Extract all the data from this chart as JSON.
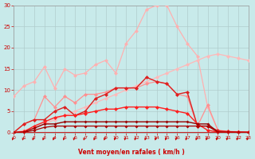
{
  "xlabel": "Vent moyen/en rafales ( km/h )",
  "xlim": [
    0,
    23
  ],
  "ylim": [
    0,
    30
  ],
  "yticks": [
    0,
    5,
    10,
    15,
    20,
    25,
    30
  ],
  "xticks": [
    0,
    1,
    2,
    3,
    4,
    5,
    6,
    7,
    8,
    9,
    10,
    11,
    12,
    13,
    14,
    15,
    16,
    17,
    18,
    19,
    20,
    21,
    22,
    23
  ],
  "bg_color": "#c8eaea",
  "grid_color": "#b0cccc",
  "series": [
    {
      "color": "#ffb0b0",
      "x": [
        0,
        1,
        2,
        3,
        4,
        5,
        6,
        7,
        8,
        9,
        10,
        11,
        12,
        13,
        14,
        15,
        16,
        17,
        18,
        19,
        20,
        21,
        22,
        23
      ],
      "y": [
        8.5,
        11.0,
        12.0,
        15.5,
        10.5,
        15.0,
        13.5,
        14.0,
        16.0,
        17.0,
        14.0,
        21.0,
        24.0,
        29.0,
        30.0,
        30.0,
        25.0,
        21.0,
        18.0,
        6.0,
        0.5,
        0.3,
        0.2,
        0.1
      ],
      "lw": 0.9,
      "ms": 2.5
    },
    {
      "color": "#ffb8b8",
      "x": [
        0,
        1,
        2,
        3,
        4,
        5,
        6,
        7,
        8,
        9,
        10,
        11,
        12,
        13,
        14,
        15,
        16,
        17,
        18,
        19,
        20,
        21,
        22,
        23
      ],
      "y": [
        0.0,
        0.5,
        1.0,
        2.0,
        3.0,
        4.0,
        5.0,
        6.0,
        7.0,
        8.0,
        9.0,
        10.0,
        11.0,
        12.0,
        13.0,
        14.0,
        15.0,
        16.0,
        17.0,
        18.0,
        18.5,
        18.0,
        17.5,
        17.0
      ],
      "lw": 0.9,
      "ms": 2.5
    },
    {
      "color": "#ff9090",
      "x": [
        0,
        1,
        2,
        3,
        4,
        5,
        6,
        7,
        8,
        9,
        10,
        11,
        12,
        13,
        14,
        15,
        16,
        17,
        18,
        19,
        20,
        21,
        22,
        23
      ],
      "y": [
        0.0,
        2.0,
        3.0,
        8.5,
        6.0,
        8.5,
        7.0,
        9.0,
        9.0,
        9.5,
        10.5,
        10.5,
        10.5,
        11.5,
        12.0,
        11.5,
        9.0,
        8.5,
        1.5,
        6.5,
        0.5,
        0.2,
        0.1,
        0.1
      ],
      "lw": 0.9,
      "ms": 2.5
    },
    {
      "color": "#dd2020",
      "x": [
        0,
        1,
        2,
        3,
        4,
        5,
        6,
        7,
        8,
        9,
        10,
        11,
        12,
        13,
        14,
        15,
        16,
        17,
        18,
        19,
        20,
        21,
        22,
        23
      ],
      "y": [
        0.0,
        2.0,
        3.0,
        3.0,
        5.0,
        6.0,
        4.0,
        5.0,
        8.0,
        9.0,
        10.5,
        10.5,
        10.5,
        13.0,
        12.0,
        11.5,
        9.0,
        9.5,
        1.5,
        1.5,
        0.4,
        0.2,
        0.1,
        0.05
      ],
      "lw": 1.0,
      "ms": 2.5
    },
    {
      "color": "#ff2020",
      "x": [
        0,
        1,
        2,
        3,
        4,
        5,
        6,
        7,
        8,
        9,
        10,
        11,
        12,
        13,
        14,
        15,
        16,
        17,
        18,
        19,
        20,
        21,
        22,
        23
      ],
      "y": [
        0.0,
        0.2,
        1.5,
        2.5,
        3.5,
        4.0,
        4.0,
        4.5,
        5.0,
        5.5,
        5.5,
        6.0,
        6.0,
        6.0,
        6.0,
        5.5,
        5.0,
        4.5,
        2.0,
        0.5,
        0.1,
        0.05,
        0.02,
        0.01
      ],
      "lw": 1.0,
      "ms": 2.5
    },
    {
      "color": "#990000",
      "x": [
        0,
        1,
        2,
        3,
        4,
        5,
        6,
        7,
        8,
        9,
        10,
        11,
        12,
        13,
        14,
        15,
        16,
        17,
        18,
        19,
        20,
        21,
        22,
        23
      ],
      "y": [
        0.0,
        0.1,
        1.0,
        2.0,
        2.0,
        2.5,
        2.5,
        2.5,
        2.5,
        2.5,
        2.5,
        2.5,
        2.5,
        2.5,
        2.5,
        2.5,
        2.5,
        2.5,
        2.0,
        2.0,
        0.1,
        0.05,
        0.02,
        0.01
      ],
      "lw": 1.0,
      "ms": 2.0
    },
    {
      "color": "#aa0000",
      "x": [
        0,
        1,
        2,
        3,
        4,
        5,
        6,
        7,
        8,
        9,
        10,
        11,
        12,
        13,
        14,
        15,
        16,
        17,
        18,
        19,
        20,
        21,
        22,
        23
      ],
      "y": [
        0.0,
        0.05,
        0.5,
        1.2,
        1.5,
        1.5,
        1.5,
        1.5,
        1.5,
        1.5,
        1.5,
        1.5,
        1.5,
        1.5,
        1.5,
        1.5,
        1.5,
        1.5,
        1.5,
        1.5,
        0.05,
        0.02,
        0.01,
        0.005
      ],
      "lw": 0.9,
      "ms": 2.0
    }
  ],
  "arrow_color": "#cc0000",
  "xlabel_color": "#cc0000",
  "tick_color": "#cc0000",
  "figsize": [
    3.2,
    2.0
  ],
  "dpi": 100
}
